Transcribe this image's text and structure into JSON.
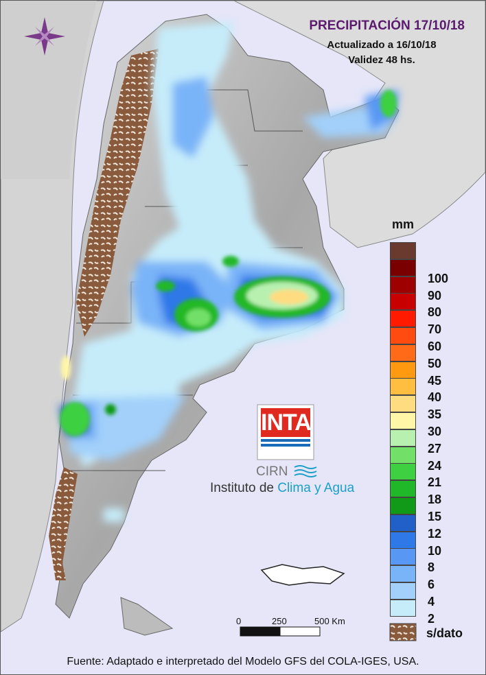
{
  "header": {
    "title": "PRECIPITACIÓN 17/10/18",
    "updated": "Actualizado a 16/10/18",
    "validity": "Validez 48 hs."
  },
  "legend": {
    "unit": "mm",
    "levels": [
      {
        "label": "",
        "color": "#6b3a2e"
      },
      {
        "label": "100",
        "color": "#7a0000"
      },
      {
        "label": "90",
        "color": "#9e0000"
      },
      {
        "label": "80",
        "color": "#c80000"
      },
      {
        "label": "70",
        "color": "#ff1a00"
      },
      {
        "label": "60",
        "color": "#ff4a10"
      },
      {
        "label": "50",
        "color": "#ff6a18"
      },
      {
        "label": "45",
        "color": "#ff9a10"
      },
      {
        "label": "40",
        "color": "#ffbe40"
      },
      {
        "label": "35",
        "color": "#ffdc80"
      },
      {
        "label": "30",
        "color": "#fff6a8"
      },
      {
        "label": "27",
        "color": "#b8f0b0"
      },
      {
        "label": "24",
        "color": "#72e068"
      },
      {
        "label": "21",
        "color": "#3ed040"
      },
      {
        "label": "18",
        "color": "#20b828"
      },
      {
        "label": "15",
        "color": "#109a18"
      },
      {
        "label": "12",
        "color": "#2060c8"
      },
      {
        "label": "10",
        "color": "#2e78e8"
      },
      {
        "label": "8",
        "color": "#5898f4"
      },
      {
        "label": "6",
        "color": "#7ab4f8"
      },
      {
        "label": "4",
        "color": "#a2d0fa"
      },
      {
        "label": "2",
        "color": "#c6ecfa"
      }
    ],
    "no_data_label": "s/dato",
    "no_data_color": "#8a5a3c"
  },
  "scale_bar": {
    "labels": [
      "0",
      "250",
      "500 Km"
    ]
  },
  "logo": {
    "brand": "INTA",
    "center": "CIRN",
    "institute_prefix": "Instituto de ",
    "institute_highlight": "Clima y Agua"
  },
  "footer": {
    "source": "Fuente: Adaptado e interpretado del Modelo GFS del COLA-IGES, USA."
  },
  "colors": {
    "sea": "#e6e6f8",
    "land": "#b4b4b4",
    "land_light": "#dcdcdc",
    "title": "#5a1a6e",
    "brand_red": "#e02a20",
    "brand_blue": "#1a6ab8",
    "highlight": "#1aa0c8"
  }
}
